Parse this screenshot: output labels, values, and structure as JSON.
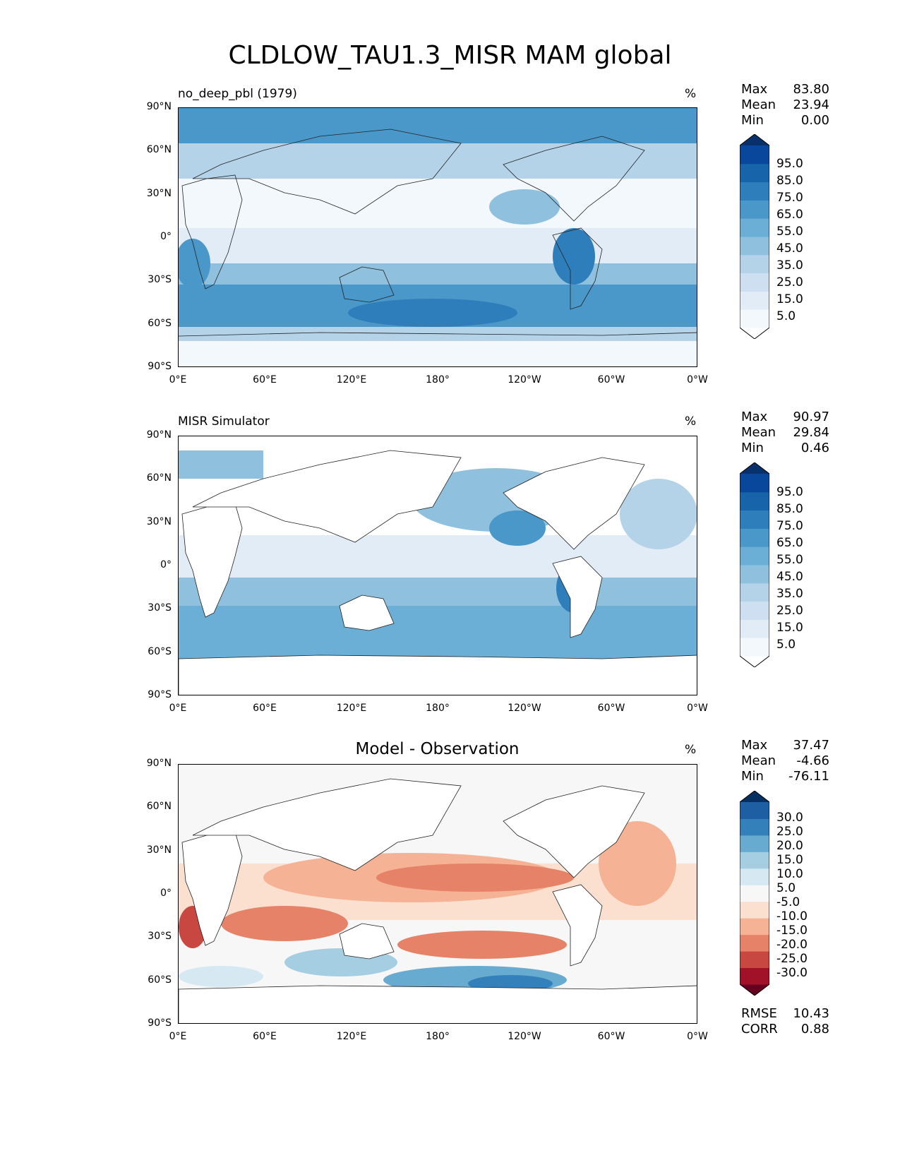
{
  "title": "CLDLOW_TAU1.3_MISR MAM global",
  "lat_labels": [
    "90°N",
    "60°N",
    "30°N",
    "0°",
    "30°S",
    "60°S",
    "90°S"
  ],
  "lon_labels": [
    "0°E",
    "60°E",
    "120°E",
    "180°",
    "120°W",
    "60°W",
    "0°W"
  ],
  "stat_labels": {
    "max": "Max",
    "mean": "Mean",
    "min": "Min",
    "rmse": "RMSE",
    "corr": "CORR"
  },
  "panels": [
    {
      "title": "no_deep_pbl (1979)",
      "units": "%",
      "stats": {
        "max": "83.80",
        "mean": "23.94",
        "min": "0.00"
      },
      "colorbar": {
        "labels": [
          "95.0",
          "85.0",
          "75.0",
          "65.0",
          "55.0",
          "45.0",
          "35.0",
          "25.0",
          "15.0",
          "5.0"
        ],
        "colors": [
          "#ffffff",
          "#f3f8fd",
          "#e1ecf7",
          "#cddff1",
          "#b4d3e9",
          "#8fc1de",
          "#6baed6",
          "#4a98c9",
          "#2f7ebc",
          "#1764ab",
          "#08479c",
          "#08306b"
        ]
      }
    },
    {
      "title": "MISR Simulator",
      "units": "%",
      "stats": {
        "max": "90.97",
        "mean": "29.84",
        "min": "0.46"
      },
      "colorbar": {
        "labels": [
          "95.0",
          "85.0",
          "75.0",
          "65.0",
          "55.0",
          "45.0",
          "35.0",
          "25.0",
          "15.0",
          "5.0"
        ],
        "colors": [
          "#ffffff",
          "#f3f8fd",
          "#e1ecf7",
          "#cddff1",
          "#b4d3e9",
          "#8fc1de",
          "#6baed6",
          "#4a98c9",
          "#2f7ebc",
          "#1764ab",
          "#08479c",
          "#08306b"
        ]
      }
    },
    {
      "title": "Model - Observation",
      "units": "%",
      "stats": {
        "max": "37.47",
        "mean": "-4.66",
        "min": "-76.11"
      },
      "extra_stats": {
        "rmse": "10.43",
        "corr": "0.88"
      },
      "colorbar": {
        "labels": [
          "30.0",
          "25.0",
          "20.0",
          "15.0",
          "10.0",
          "5.0",
          "-5.0",
          "-10.0",
          "-15.0",
          "-20.0",
          "-25.0",
          "-30.0"
        ],
        "colors": [
          "#67001f",
          "#a11228",
          "#c94741",
          "#e58267",
          "#f6b294",
          "#fbe0d0",
          "#f7f7f7",
          "#d6e8f2",
          "#a5cee3",
          "#68abd0",
          "#3380ba",
          "#1d5fa2",
          "#053061"
        ]
      }
    }
  ]
}
